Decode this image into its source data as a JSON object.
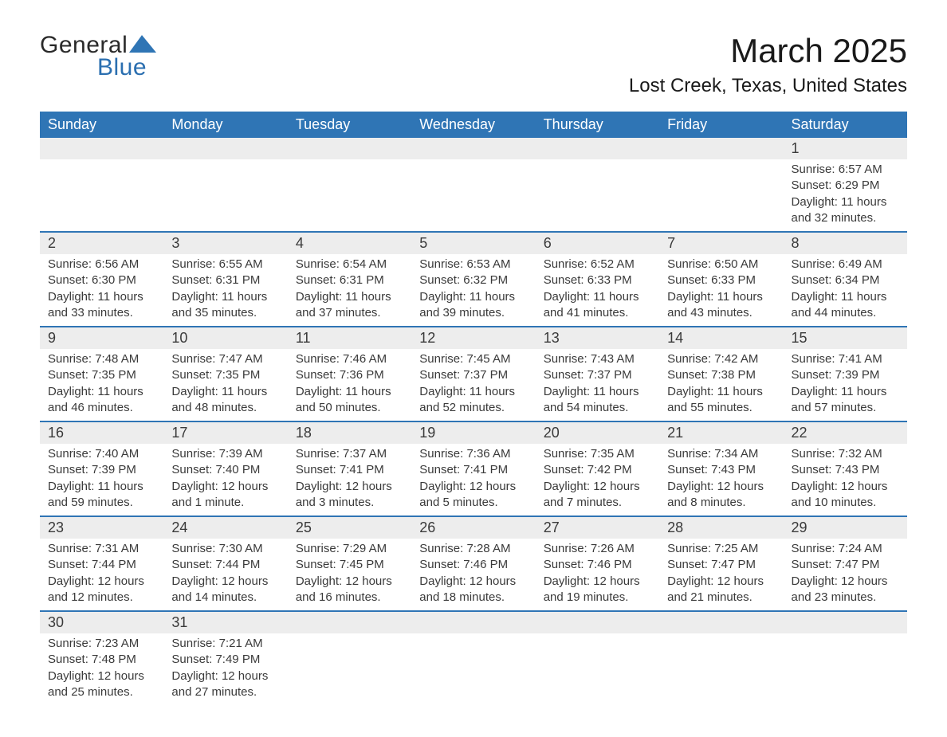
{
  "brand": {
    "general": "General",
    "blue": "Blue",
    "shape_color": "#2f75b5"
  },
  "title": {
    "month": "March 2025",
    "location": "Lost Creek, Texas, United States"
  },
  "colors": {
    "header_bg": "#2f75b5",
    "header_text": "#ffffff",
    "daynum_bg": "#ededed",
    "row_border": "#2f75b5",
    "body_text": "#3a3a3a",
    "page_bg": "#ffffff"
  },
  "typography": {
    "month_title_pt": 42,
    "location_pt": 24,
    "weekday_pt": 18,
    "daynum_pt": 18,
    "detail_pt": 15,
    "logo_pt": 30
  },
  "weekdays": [
    "Sunday",
    "Monday",
    "Tuesday",
    "Wednesday",
    "Thursday",
    "Friday",
    "Saturday"
  ],
  "weeks": [
    [
      null,
      null,
      null,
      null,
      null,
      null,
      {
        "n": "1",
        "sr": "6:57 AM",
        "ss": "6:29 PM",
        "dl": "11 hours and 32 minutes."
      }
    ],
    [
      {
        "n": "2",
        "sr": "6:56 AM",
        "ss": "6:30 PM",
        "dl": "11 hours and 33 minutes."
      },
      {
        "n": "3",
        "sr": "6:55 AM",
        "ss": "6:31 PM",
        "dl": "11 hours and 35 minutes."
      },
      {
        "n": "4",
        "sr": "6:54 AM",
        "ss": "6:31 PM",
        "dl": "11 hours and 37 minutes."
      },
      {
        "n": "5",
        "sr": "6:53 AM",
        "ss": "6:32 PM",
        "dl": "11 hours and 39 minutes."
      },
      {
        "n": "6",
        "sr": "6:52 AM",
        "ss": "6:33 PM",
        "dl": "11 hours and 41 minutes."
      },
      {
        "n": "7",
        "sr": "6:50 AM",
        "ss": "6:33 PM",
        "dl": "11 hours and 43 minutes."
      },
      {
        "n": "8",
        "sr": "6:49 AM",
        "ss": "6:34 PM",
        "dl": "11 hours and 44 minutes."
      }
    ],
    [
      {
        "n": "9",
        "sr": "7:48 AM",
        "ss": "7:35 PM",
        "dl": "11 hours and 46 minutes."
      },
      {
        "n": "10",
        "sr": "7:47 AM",
        "ss": "7:35 PM",
        "dl": "11 hours and 48 minutes."
      },
      {
        "n": "11",
        "sr": "7:46 AM",
        "ss": "7:36 PM",
        "dl": "11 hours and 50 minutes."
      },
      {
        "n": "12",
        "sr": "7:45 AM",
        "ss": "7:37 PM",
        "dl": "11 hours and 52 minutes."
      },
      {
        "n": "13",
        "sr": "7:43 AM",
        "ss": "7:37 PM",
        "dl": "11 hours and 54 minutes."
      },
      {
        "n": "14",
        "sr": "7:42 AM",
        "ss": "7:38 PM",
        "dl": "11 hours and 55 minutes."
      },
      {
        "n": "15",
        "sr": "7:41 AM",
        "ss": "7:39 PM",
        "dl": "11 hours and 57 minutes."
      }
    ],
    [
      {
        "n": "16",
        "sr": "7:40 AM",
        "ss": "7:39 PM",
        "dl": "11 hours and 59 minutes."
      },
      {
        "n": "17",
        "sr": "7:39 AM",
        "ss": "7:40 PM",
        "dl": "12 hours and 1 minute."
      },
      {
        "n": "18",
        "sr": "7:37 AM",
        "ss": "7:41 PM",
        "dl": "12 hours and 3 minutes."
      },
      {
        "n": "19",
        "sr": "7:36 AM",
        "ss": "7:41 PM",
        "dl": "12 hours and 5 minutes."
      },
      {
        "n": "20",
        "sr": "7:35 AM",
        "ss": "7:42 PM",
        "dl": "12 hours and 7 minutes."
      },
      {
        "n": "21",
        "sr": "7:34 AM",
        "ss": "7:43 PM",
        "dl": "12 hours and 8 minutes."
      },
      {
        "n": "22",
        "sr": "7:32 AM",
        "ss": "7:43 PM",
        "dl": "12 hours and 10 minutes."
      }
    ],
    [
      {
        "n": "23",
        "sr": "7:31 AM",
        "ss": "7:44 PM",
        "dl": "12 hours and 12 minutes."
      },
      {
        "n": "24",
        "sr": "7:30 AM",
        "ss": "7:44 PM",
        "dl": "12 hours and 14 minutes."
      },
      {
        "n": "25",
        "sr": "7:29 AM",
        "ss": "7:45 PM",
        "dl": "12 hours and 16 minutes."
      },
      {
        "n": "26",
        "sr": "7:28 AM",
        "ss": "7:46 PM",
        "dl": "12 hours and 18 minutes."
      },
      {
        "n": "27",
        "sr": "7:26 AM",
        "ss": "7:46 PM",
        "dl": "12 hours and 19 minutes."
      },
      {
        "n": "28",
        "sr": "7:25 AM",
        "ss": "7:47 PM",
        "dl": "12 hours and 21 minutes."
      },
      {
        "n": "29",
        "sr": "7:24 AM",
        "ss": "7:47 PM",
        "dl": "12 hours and 23 minutes."
      }
    ],
    [
      {
        "n": "30",
        "sr": "7:23 AM",
        "ss": "7:48 PM",
        "dl": "12 hours and 25 minutes."
      },
      {
        "n": "31",
        "sr": "7:21 AM",
        "ss": "7:49 PM",
        "dl": "12 hours and 27 minutes."
      },
      null,
      null,
      null,
      null,
      null
    ]
  ],
  "labels": {
    "sunrise": "Sunrise:",
    "sunset": "Sunset:",
    "daylight": "Daylight:"
  }
}
